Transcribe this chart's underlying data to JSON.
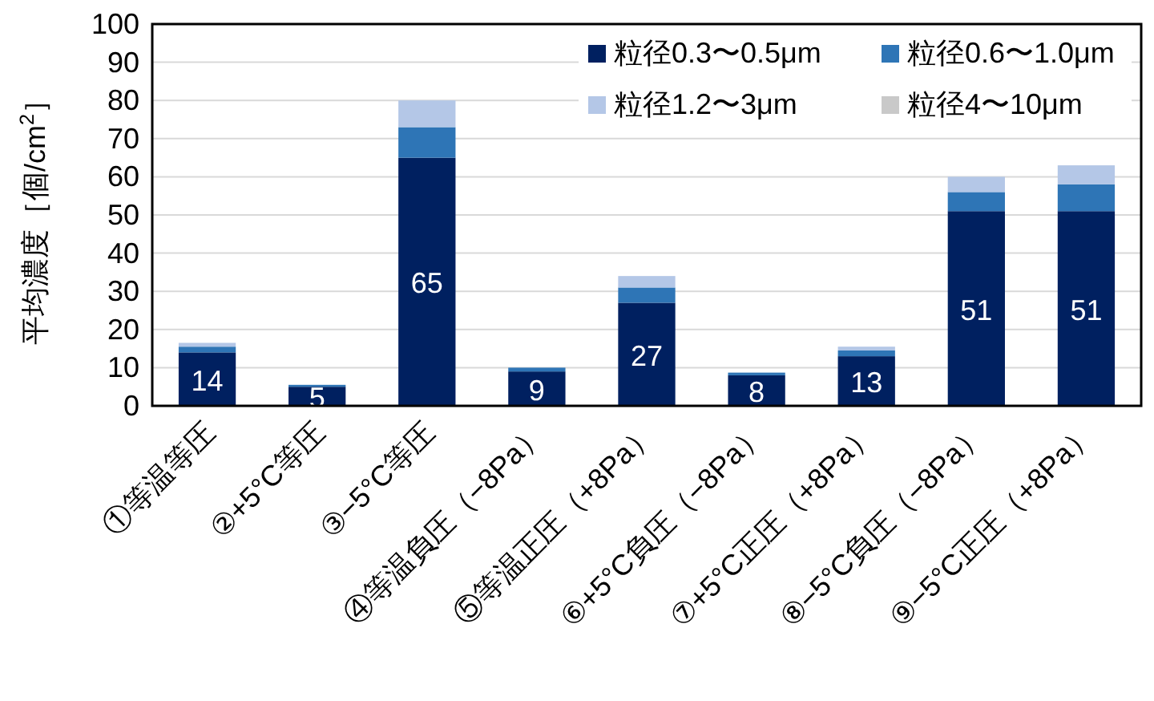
{
  "chart_data": {
    "type": "bar",
    "stacked": true,
    "ylabel": "平均濃度［個/cm$^{2}$］",
    "categories": [
      "①等温等圧",
      "②+5°C等圧",
      "③−5°C等圧",
      "④等温負圧（−8Pa）",
      "⑤等温正圧（+8Pa）",
      "⑥+5°C負圧（−8Pa）",
      "⑦+5°C正圧（+8Pa）",
      "⑧−5°C負圧（−8Pa）",
      "⑨−5°C正圧（+8Pa）"
    ],
    "series": [
      {
        "name": "粒径0.3〜0.5μm",
        "color": "#002060",
        "values": [
          14,
          5,
          65,
          9,
          27,
          8,
          13,
          51,
          51
        ],
        "value_labels": [
          "14",
          "5",
          "65",
          "9",
          "27",
          "8",
          "13",
          "51",
          "51"
        ]
      },
      {
        "name": "粒径0.6〜1.0μm",
        "color": "#2e75b6",
        "values": [
          1.5,
          0.5,
          8,
          1,
          4,
          0.7,
          1.5,
          5,
          7
        ]
      },
      {
        "name": "粒径1.2〜3μm",
        "color": "#b4c7e7",
        "values": [
          1,
          null,
          7,
          null,
          3,
          null,
          1,
          4,
          5
        ]
      },
      {
        "name": "粒径4〜10μm",
        "color": "#c9c9c9",
        "values": [
          0,
          0,
          0,
          0,
          0,
          0,
          0,
          0,
          0
        ]
      }
    ],
    "ylim": [
      0,
      100
    ],
    "yticks": [
      0,
      10,
      20,
      30,
      40,
      50,
      60,
      70,
      80,
      90,
      100
    ],
    "grid": "y",
    "legend": "top right"
  }
}
